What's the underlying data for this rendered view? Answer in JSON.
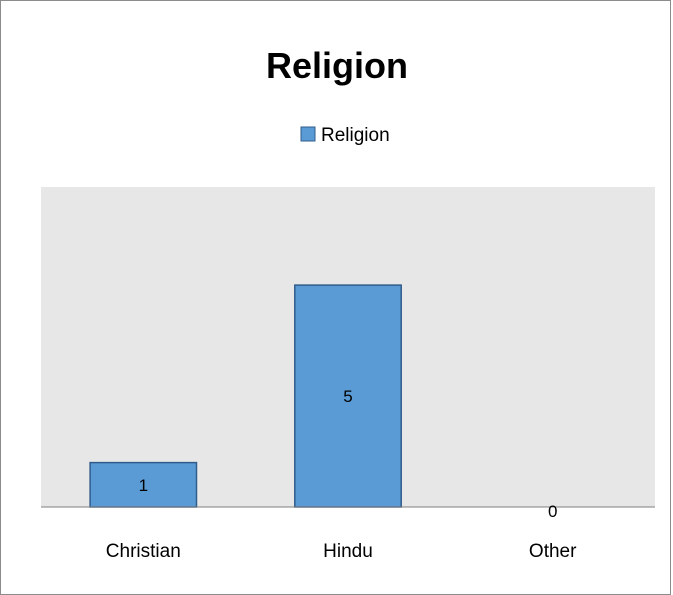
{
  "chart_data": {
    "type": "bar",
    "title": "Religion",
    "categories": [
      "Christian",
      "Hindu",
      "Other"
    ],
    "series": [
      {
        "name": "Religion",
        "values": [
          1,
          5,
          0
        ]
      }
    ],
    "data_labels": [
      "1",
      "5",
      "0"
    ],
    "ylim": [
      0,
      6
    ],
    "grid": false,
    "legend_position": "top",
    "colors": {
      "bar_fill": "#5b9bd5",
      "bar_stroke": "#2f5c8a",
      "plot_area": "#e7e7e7",
      "axis_line": "#7f7f7f",
      "frame": "#8c8c8c"
    }
  }
}
